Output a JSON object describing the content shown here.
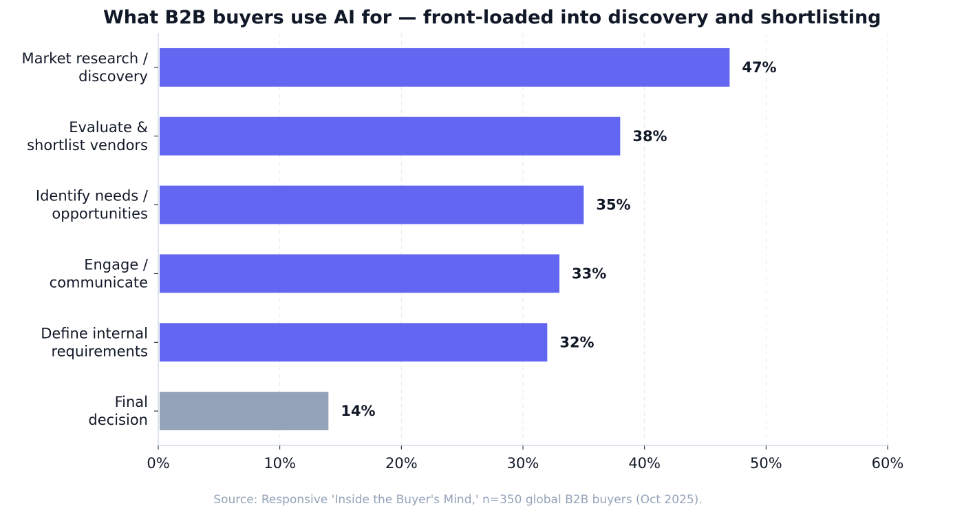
{
  "chart_data": {
    "type": "bar",
    "orientation": "horizontal",
    "title": "What B2B buyers use AI for — front-loaded into discovery and shortlisting",
    "xlabel": "",
    "ylabel": "",
    "xlim": [
      0,
      60
    ],
    "x_ticks": [
      "0%",
      "10%",
      "20%",
      "30%",
      "40%",
      "50%",
      "60%"
    ],
    "grid": "vertical dashed",
    "categories": [
      [
        "Market research /",
        "discovery"
      ],
      [
        "Evaluate &",
        "shortlist vendors"
      ],
      [
        "Identify needs /",
        "opportunities"
      ],
      [
        "Engage /",
        "communicate"
      ],
      [
        "Define internal",
        "requirements"
      ],
      [
        "Final",
        "decision"
      ]
    ],
    "values": [
      47,
      38,
      35,
      33,
      32,
      14
    ],
    "value_labels": [
      "47%",
      "38%",
      "35%",
      "33%",
      "32%",
      "14%"
    ],
    "colors": [
      "#6366f1",
      "#6366f1",
      "#6366f1",
      "#6366f1",
      "#6366f1",
      "#94a3b8"
    ],
    "source": "Source: Responsive 'Inside the Buyer's Mind,' n=350 global B2B buyers (Oct 2025)."
  }
}
